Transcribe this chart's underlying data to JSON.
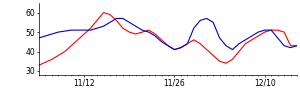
{
  "xlim": [
    0,
    40
  ],
  "ylim": [
    28,
    65
  ],
  "yticks": [
    30,
    40,
    50,
    60
  ],
  "xtick_positions": [
    7,
    21,
    35
  ],
  "xtick_labels": [
    "11/12",
    "11/26",
    "12/10"
  ],
  "red_line": [
    33,
    34.5,
    36,
    38,
    40,
    43,
    46,
    49,
    52,
    56,
    60,
    59,
    56,
    52,
    50,
    49,
    50,
    51,
    49,
    46,
    43,
    41,
    42,
    44,
    46,
    44,
    41,
    38,
    35,
    34,
    36,
    40,
    44,
    46,
    48,
    50,
    51,
    51,
    50,
    43,
    43
  ],
  "blue_line": [
    47,
    48,
    49,
    50,
    50.5,
    51,
    51,
    51,
    51,
    52,
    53,
    55,
    57,
    57,
    55,
    53,
    51,
    50,
    48,
    45,
    43,
    41,
    42,
    44,
    52,
    56,
    57,
    55,
    47,
    43,
    41,
    44,
    46,
    48,
    50,
    51,
    51,
    47,
    43,
    42,
    43
  ],
  "line_width": 0.8,
  "red_color": "#ff0000",
  "blue_color": "#0000cc",
  "bg_color": "#ffffff",
  "tick_fontsize": 5.5
}
